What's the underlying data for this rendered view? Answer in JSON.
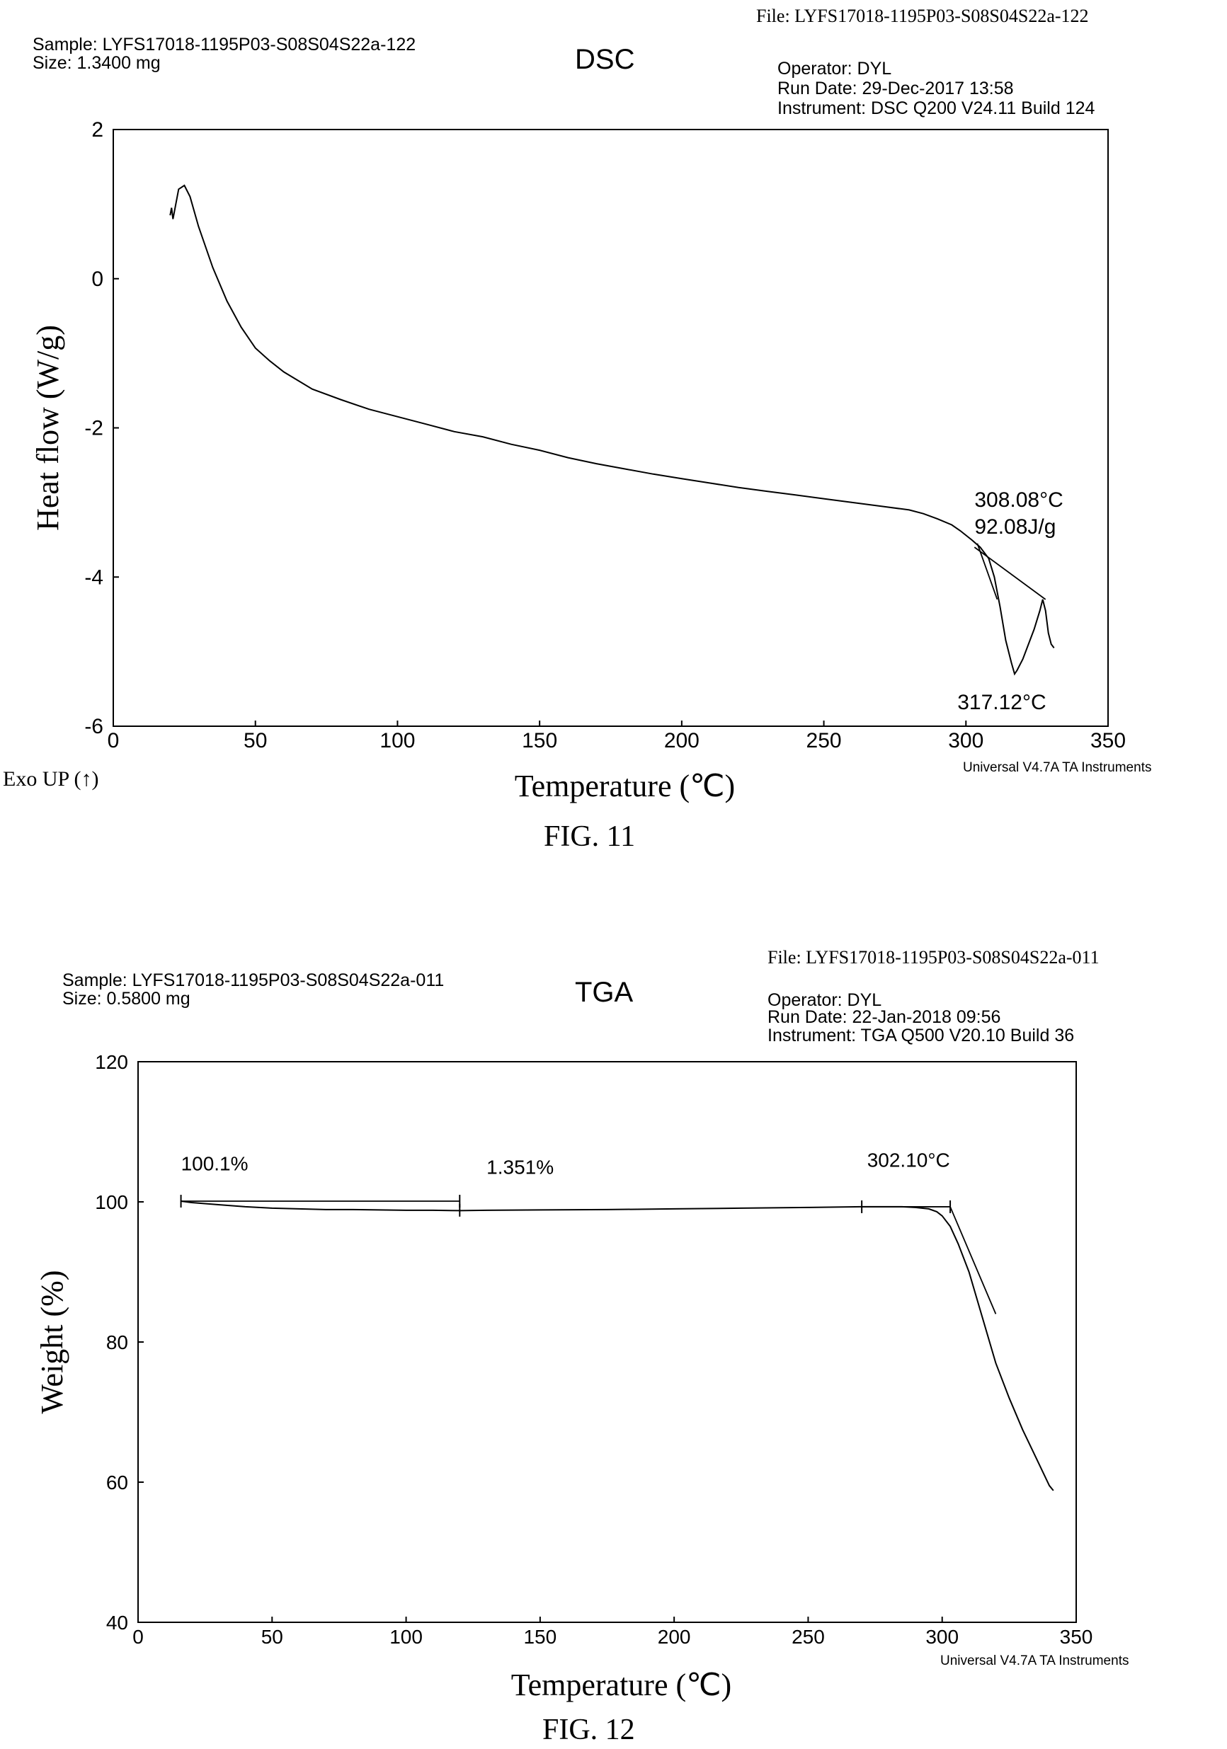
{
  "charts": [
    {
      "file": "File: LYFS17018-1195P03-S08S04S22a-122",
      "sample": "Sample: LYFS17018-1195P03-S08S04S22a-122",
      "size": "Size:  1.3400 mg",
      "title": "DSC",
      "operator": "Operator: DYL",
      "run_date": "Run Date: 29-Dec-2017 13:58",
      "instrument": "Instrument: DSC Q200 V24.11 Build 124",
      "software": "Universal V4.7A TA Instruments",
      "exo": "Exo UP (↑)",
      "figure": "FIG. 11"
    },
    {
      "file": "File: LYFS17018-1195P03-S08S04S22a-011",
      "sample": "Sample: LYFS17018-1195P03-S08S04S22a-011",
      "size": "Size: 0.5800 mg",
      "title": "TGA",
      "operator": "Operator: DYL",
      "run_date": "Run Date: 22-Jan-2018 09:56",
      "instrument": "Instrument: TGA Q500 V20.10 Build 36",
      "software": "Universal V4.7A TA Instruments",
      "figure": "FIG. 12"
    }
  ],
  "chart_data": [
    {
      "type": "line",
      "title": "DSC",
      "xlabel": "Temperature (℃)",
      "ylabel": "Heat flow (W/g)",
      "xlim": [
        0,
        350
      ],
      "ylim": [
        -6,
        2
      ],
      "xticks": [
        "0",
        "50",
        "100",
        "150",
        "200",
        "250",
        "300",
        "350"
      ],
      "yticks": [
        "-6",
        "-4",
        "-2",
        "0",
        "2"
      ],
      "series": [
        {
          "x": [
            20,
            20.5,
            21,
            22,
            23,
            25,
            27,
            30,
            35,
            40,
            45,
            50,
            55,
            60,
            70,
            80,
            90,
            100,
            110,
            120,
            130,
            140,
            150,
            160,
            170,
            180,
            190,
            200,
            210,
            220,
            230,
            240,
            250,
            260,
            270,
            280,
            285,
            290,
            295,
            298,
            302,
            305,
            308,
            310,
            312,
            314,
            316,
            317.12,
            318,
            320,
            322,
            324,
            326,
            327,
            328,
            329,
            330,
            331
          ],
          "y": [
            0.85,
            0.95,
            0.8,
            1.0,
            1.2,
            1.25,
            1.1,
            0.7,
            0.15,
            -0.3,
            -0.65,
            -0.93,
            -1.1,
            -1.25,
            -1.48,
            -1.62,
            -1.75,
            -1.85,
            -1.95,
            -2.05,
            -2.12,
            -2.22,
            -2.3,
            -2.4,
            -2.48,
            -2.55,
            -2.62,
            -2.68,
            -2.74,
            -2.8,
            -2.85,
            -2.9,
            -2.95,
            -3.0,
            -3.05,
            -3.1,
            -3.15,
            -3.22,
            -3.3,
            -3.38,
            -3.5,
            -3.6,
            -3.75,
            -4.0,
            -4.4,
            -4.85,
            -5.15,
            -5.3,
            -5.25,
            -5.1,
            -4.9,
            -4.7,
            -4.45,
            -4.3,
            -4.45,
            -4.75,
            -4.9,
            -4.95
          ]
        }
      ],
      "annotations": [
        "308.08°C",
        "92.08J/g",
        "317.12°C"
      ]
    },
    {
      "type": "line",
      "title": "TGA",
      "xlabel": "Temperature (℃)",
      "ylabel": "Weight  (%)",
      "xlim": [
        0,
        350
      ],
      "ylim": [
        40,
        120
      ],
      "xticks": [
        "0",
        "50",
        "100",
        "150",
        "200",
        "250",
        "300",
        "350"
      ],
      "yticks": [
        "40",
        "60",
        "80",
        "100",
        "120"
      ],
      "series": [
        {
          "x": [
            16,
            20,
            30,
            40,
            50,
            60,
            70,
            80,
            90,
            100,
            110,
            120,
            130,
            150,
            175,
            200,
            225,
            250,
            270,
            285,
            290,
            295,
            298,
            300,
            303,
            306,
            310,
            315,
            320,
            325,
            330,
            335,
            340,
            341.5
          ],
          "y": [
            100.1,
            99.9,
            99.6,
            99.3,
            99.1,
            99.0,
            98.9,
            98.9,
            98.85,
            98.8,
            98.8,
            98.75,
            98.8,
            98.85,
            98.9,
            99.0,
            99.1,
            99.2,
            99.3,
            99.3,
            99.2,
            99.0,
            98.6,
            98.0,
            96.5,
            94.0,
            90.0,
            83.5,
            77.0,
            72.0,
            67.5,
            63.5,
            59.5,
            58.8
          ]
        }
      ],
      "annotations": [
        "100.1%",
        "1.351%",
        "302.10°C"
      ]
    }
  ]
}
